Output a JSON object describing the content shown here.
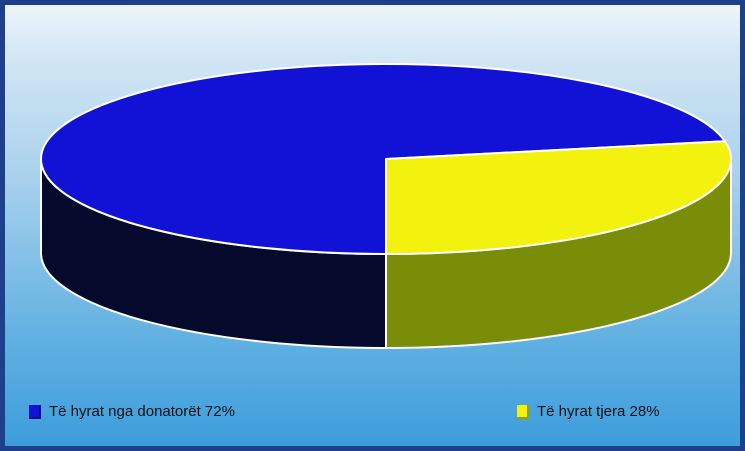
{
  "chart_data": {
    "type": "pie",
    "title": "",
    "slices": [
      {
        "label": "Të hyrat nga donatorët",
        "value": 72,
        "display": "Të hyrat nga donatorët 72%",
        "color": "#1212d6",
        "side_color": "#050a2c"
      },
      {
        "label": "Të hyrat tjera",
        "value": 28,
        "display": "Të hyrat tjera 28%",
        "color": "#f2f20e",
        "side_color": "#7a8d08"
      }
    ],
    "legend_position": "bottom",
    "three_d": true
  }
}
